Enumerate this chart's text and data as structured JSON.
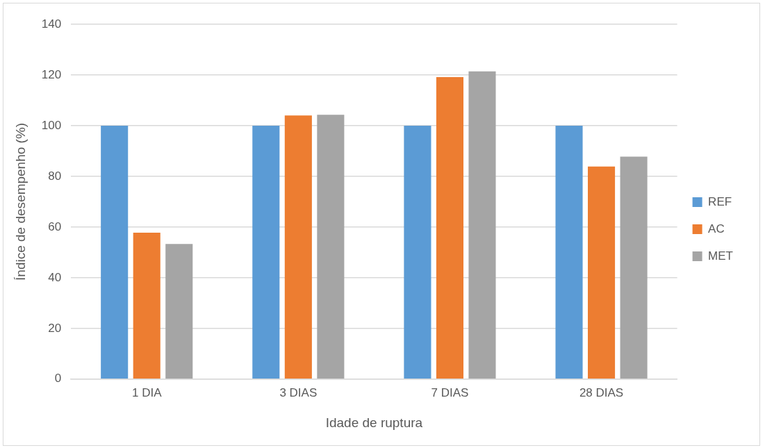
{
  "chart_data": {
    "type": "bar",
    "xlabel": "Idade de ruptura",
    "ylabel": "Índice de desempenho (%)",
    "categories": [
      "1 DIA",
      "3 DIAS",
      "7 DIAS",
      "28 DIAS"
    ],
    "series": [
      {
        "name": "REF",
        "color": "#5b9bd5",
        "values": [
          100,
          100,
          100,
          100
        ]
      },
      {
        "name": "AC",
        "color": "#ed7d31",
        "values": [
          57.8,
          104,
          119.2,
          83.9
        ]
      },
      {
        "name": "MET",
        "color": "#a5a5a5",
        "values": [
          53.3,
          104.3,
          121.4,
          87.8
        ]
      }
    ],
    "ylim": [
      0,
      140
    ],
    "yticks": [
      0,
      20,
      40,
      60,
      80,
      100,
      120,
      140
    ],
    "grid": "y",
    "legend": "right"
  }
}
